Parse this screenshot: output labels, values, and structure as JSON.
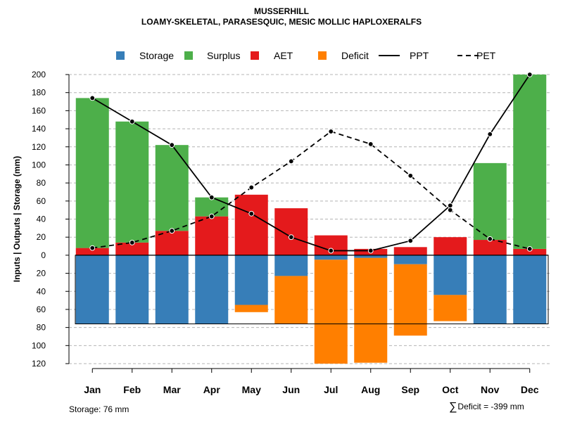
{
  "title": "MUSSERHILL",
  "subtitle": "LOAMY-SKELETAL, PARASESQUIC, MESIC MOLLIC HAPLOXERALFS",
  "footer": {
    "storage_text": "Storage: 76 mm",
    "deficit_symbol": "∑",
    "deficit_text": "Deficit = -399 mm"
  },
  "chart_data": {
    "type": "bar",
    "title": "MUSSERHILL",
    "subtitle": "LOAMY-SKELETAL, PARASESQUIC, MESIC MOLLIC HAPLOXERALFS",
    "ylabel": "Inputs | Outputs | Storage    (mm)",
    "xlabel": "",
    "ylim": [
      -120,
      200
    ],
    "yticks": [
      200,
      180,
      160,
      140,
      120,
      100,
      80,
      60,
      40,
      20,
      0,
      -20,
      -40,
      -60,
      -80,
      -100,
      -120
    ],
    "ytick_labels": [
      "200",
      "180",
      "160",
      "140",
      "120",
      "100",
      "80",
      "60",
      "40",
      "20",
      "0",
      "20",
      "40",
      "60",
      "80",
      "100",
      "120"
    ],
    "grid": true,
    "legend_position": "top",
    "categories": [
      "Jan",
      "Feb",
      "Mar",
      "Apr",
      "May",
      "Jun",
      "Jul",
      "Aug",
      "Sep",
      "Oct",
      "Nov",
      "Dec"
    ],
    "colors": {
      "Storage": "#377eb8",
      "Surplus": "#4daf4a",
      "AET": "#e41a1c",
      "Deficit": "#ff7f00",
      "PPT": "#000000",
      "PET": "#000000"
    },
    "legend": [
      {
        "name": "Storage",
        "kind": "square"
      },
      {
        "name": "Surplus",
        "kind": "square"
      },
      {
        "name": "AET",
        "kind": "square"
      },
      {
        "name": "Deficit",
        "kind": "square"
      },
      {
        "name": "PPT",
        "kind": "solid-line"
      },
      {
        "name": "PET",
        "kind": "dashed-line"
      }
    ],
    "series": [
      {
        "name": "AET",
        "values": [
          8,
          14,
          27,
          43,
          67,
          52,
          22,
          7,
          9,
          20,
          17,
          7
        ]
      },
      {
        "name": "Surplus",
        "values": [
          166,
          134,
          95,
          21,
          0,
          0,
          0,
          0,
          0,
          0,
          85,
          193
        ]
      },
      {
        "name": "Storage",
        "values": [
          76,
          76,
          76,
          76,
          55,
          23,
          5,
          3,
          10,
          44,
          76,
          76
        ]
      },
      {
        "name": "Deficit",
        "values": [
          0,
          0,
          0,
          0,
          8,
          53,
          115,
          116,
          79,
          29,
          0,
          0
        ]
      },
      {
        "name": "PPT",
        "values": [
          174,
          148,
          122,
          64,
          46,
          20,
          5,
          5,
          16,
          55,
          134,
          200
        ]
      },
      {
        "name": "PET",
        "values": [
          8,
          14,
          27,
          43,
          75,
          104,
          137,
          123,
          88,
          50,
          18,
          7
        ]
      }
    ],
    "storage_capacity": 76
  }
}
